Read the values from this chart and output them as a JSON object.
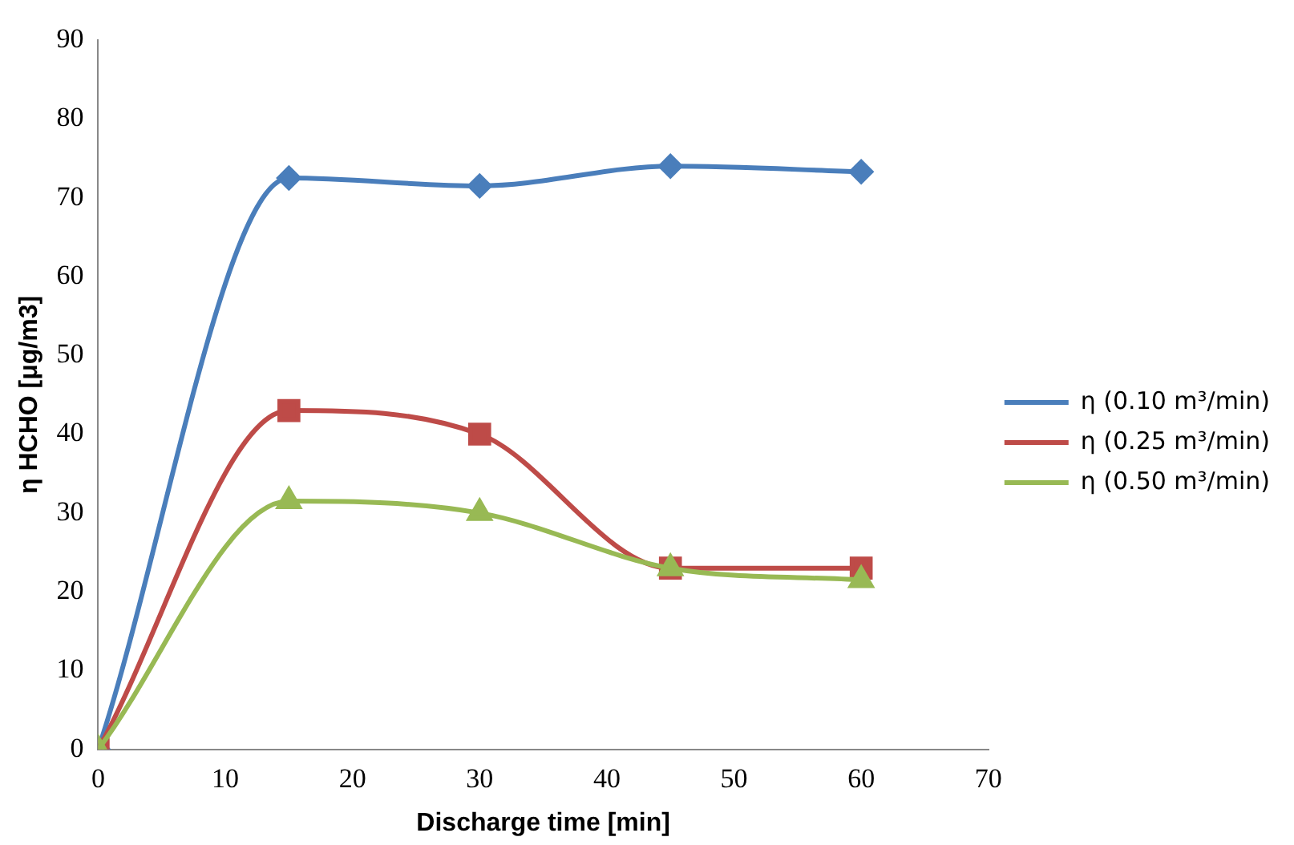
{
  "chart_data": {
    "type": "line",
    "xlabel": "Discharge time [min]",
    "ylabel": "η HCHO [μg/m3]",
    "x": [
      0,
      15,
      30,
      45,
      60
    ],
    "xlim": [
      0,
      70
    ],
    "xticks": [
      0,
      10,
      20,
      30,
      40,
      50,
      60,
      70
    ],
    "ylim": [
      0,
      90
    ],
    "yticks": [
      0,
      10,
      20,
      30,
      40,
      50,
      60,
      70,
      80,
      90
    ],
    "grid": false,
    "legend": "right",
    "series": [
      {
        "name": "η (0.10 m³/min)",
        "color": "#4a7ebb",
        "marker": "diamond",
        "values": [
          0,
          72.5,
          71.5,
          74,
          73.3
        ]
      },
      {
        "name": "η (0.25 m³/min)",
        "color": "#be4b48",
        "marker": "square",
        "values": [
          0,
          43,
          40,
          23,
          23
        ]
      },
      {
        "name": "η (0.50 m³/min)",
        "color": "#98b954",
        "marker": "triangle",
        "values": [
          0,
          31.5,
          30,
          23,
          21.5
        ]
      }
    ]
  }
}
